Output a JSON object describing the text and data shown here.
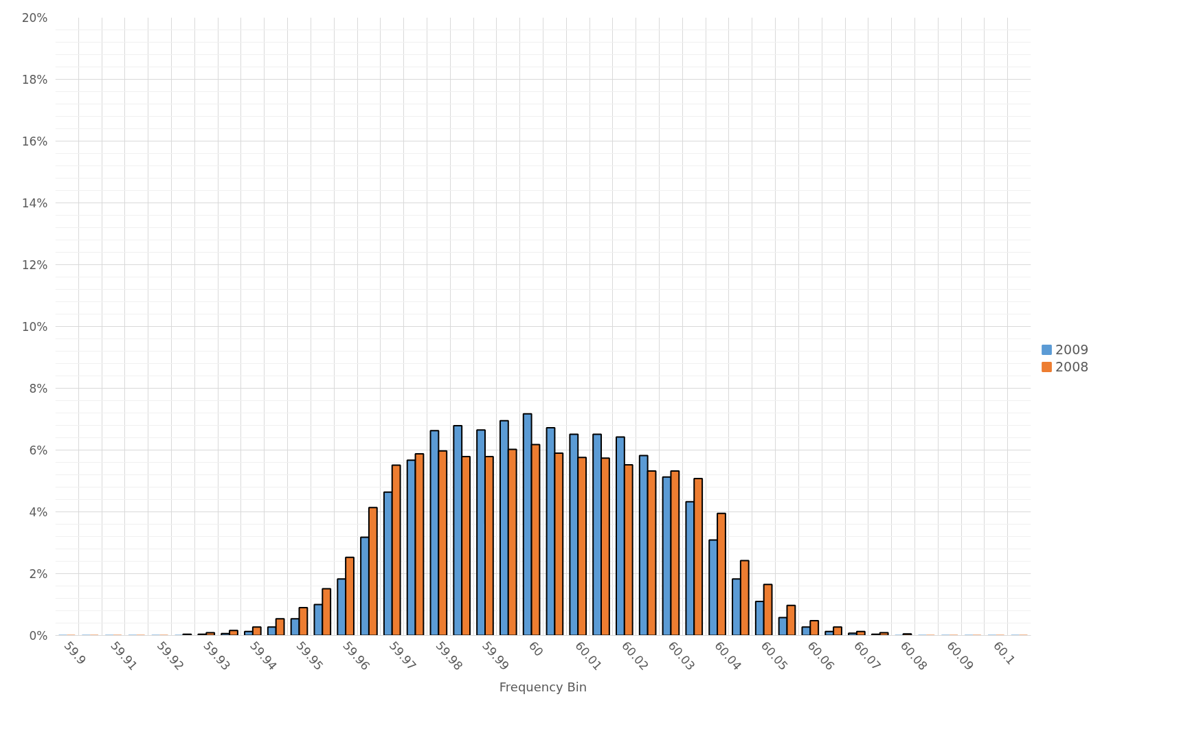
{
  "chart_data": {
    "type": "bar",
    "xlabel": "Frequency Bin",
    "categories": [
      "59.9",
      null,
      "59.91",
      null,
      "59.92",
      null,
      "59.93",
      null,
      "59.94",
      null,
      "59.95",
      null,
      "59.96",
      null,
      "59.97",
      null,
      "59.98",
      null,
      "59.99",
      null,
      "60",
      null,
      "60.01",
      null,
      "60.02",
      null,
      "60.03",
      null,
      "60.04",
      null,
      "60.05",
      null,
      "60.06",
      null,
      "60.07",
      null,
      "60.08",
      null,
      "60.09",
      null,
      "60.1",
      null
    ],
    "series": [
      {
        "name": "2009",
        "color": "#5b9bd5",
        "values": [
          0,
          0,
          0,
          0,
          0,
          0,
          0.04,
          0.06,
          0.13,
          0.27,
          0.54,
          1.0,
          1.83,
          3.18,
          4.64,
          5.67,
          6.63,
          6.79,
          6.65,
          6.95,
          7.17,
          6.72,
          6.51,
          6.51,
          6.42,
          5.82,
          5.13,
          4.33,
          3.09,
          1.83,
          1.1,
          0.58,
          0.27,
          0.13,
          0.07,
          0.04,
          0,
          0,
          0,
          0,
          0,
          0
        ]
      },
      {
        "name": "2008",
        "color": "#ed7d31",
        "values": [
          0,
          0,
          0,
          0,
          0,
          0.04,
          0.09,
          0.16,
          0.27,
          0.54,
          0.9,
          1.51,
          2.53,
          4.14,
          5.51,
          5.88,
          5.97,
          5.79,
          5.79,
          6.02,
          6.18,
          5.9,
          5.76,
          5.74,
          5.52,
          5.32,
          5.32,
          5.08,
          3.95,
          2.42,
          1.65,
          0.97,
          0.48,
          0.27,
          0.13,
          0.09,
          0.05,
          0,
          0,
          0,
          0,
          0
        ]
      }
    ],
    "ylim": [
      0,
      20
    ],
    "yticks": [
      {
        "value": 0,
        "label": "0%"
      },
      {
        "value": 0.4,
        "label": null
      },
      {
        "value": 0.8,
        "label": null
      },
      {
        "value": 1.2,
        "label": null
      },
      {
        "value": 1.6,
        "label": null
      },
      {
        "value": 2,
        "label": "2%"
      },
      {
        "value": 2.4,
        "label": null
      },
      {
        "value": 2.8,
        "label": null
      },
      {
        "value": 3.2,
        "label": null
      },
      {
        "value": 3.6,
        "label": null
      },
      {
        "value": 4,
        "label": "4%"
      },
      {
        "value": 4.4,
        "label": null
      },
      {
        "value": 4.8,
        "label": null
      },
      {
        "value": 5.2,
        "label": null
      },
      {
        "value": 5.6,
        "label": null
      },
      {
        "value": 6,
        "label": "6%"
      },
      {
        "value": 6.4,
        "label": null
      },
      {
        "value": 6.8,
        "label": null
      },
      {
        "value": 7.2,
        "label": null
      },
      {
        "value": 7.6,
        "label": null
      },
      {
        "value": 8,
        "label": "8%"
      },
      {
        "value": 8.4,
        "label": null
      },
      {
        "value": 8.8,
        "label": null
      },
      {
        "value": 9.2,
        "label": null
      },
      {
        "value": 9.6,
        "label": null
      },
      {
        "value": 10,
        "label": "10%"
      },
      {
        "value": 10.4,
        "label": null
      },
      {
        "value": 10.8,
        "label": null
      },
      {
        "value": 11.2,
        "label": null
      },
      {
        "value": 11.6,
        "label": null
      },
      {
        "value": 12,
        "label": "12%"
      },
      {
        "value": 12.4,
        "label": null
      },
      {
        "value": 12.8,
        "label": null
      },
      {
        "value": 13.2,
        "label": null
      },
      {
        "value": 13.6,
        "label": null
      },
      {
        "value": 14,
        "label": "14%"
      },
      {
        "value": 14.4,
        "label": null
      },
      {
        "value": 14.8,
        "label": null
      },
      {
        "value": 15.2,
        "label": null
      },
      {
        "value": 15.6,
        "label": null
      },
      {
        "value": 16,
        "label": "16%"
      },
      {
        "value": 16.4,
        "label": null
      },
      {
        "value": 16.8,
        "label": null
      },
      {
        "value": 17.2,
        "label": null
      },
      {
        "value": 17.6,
        "label": null
      },
      {
        "value": 18,
        "label": "18%"
      },
      {
        "value": 18.4,
        "label": null
      },
      {
        "value": 18.8,
        "label": null
      },
      {
        "value": 19.2,
        "label": null
      },
      {
        "value": 19.6,
        "label": null
      },
      {
        "value": 20,
        "label": "20%"
      }
    ],
    "grid": true,
    "legend": "right"
  }
}
